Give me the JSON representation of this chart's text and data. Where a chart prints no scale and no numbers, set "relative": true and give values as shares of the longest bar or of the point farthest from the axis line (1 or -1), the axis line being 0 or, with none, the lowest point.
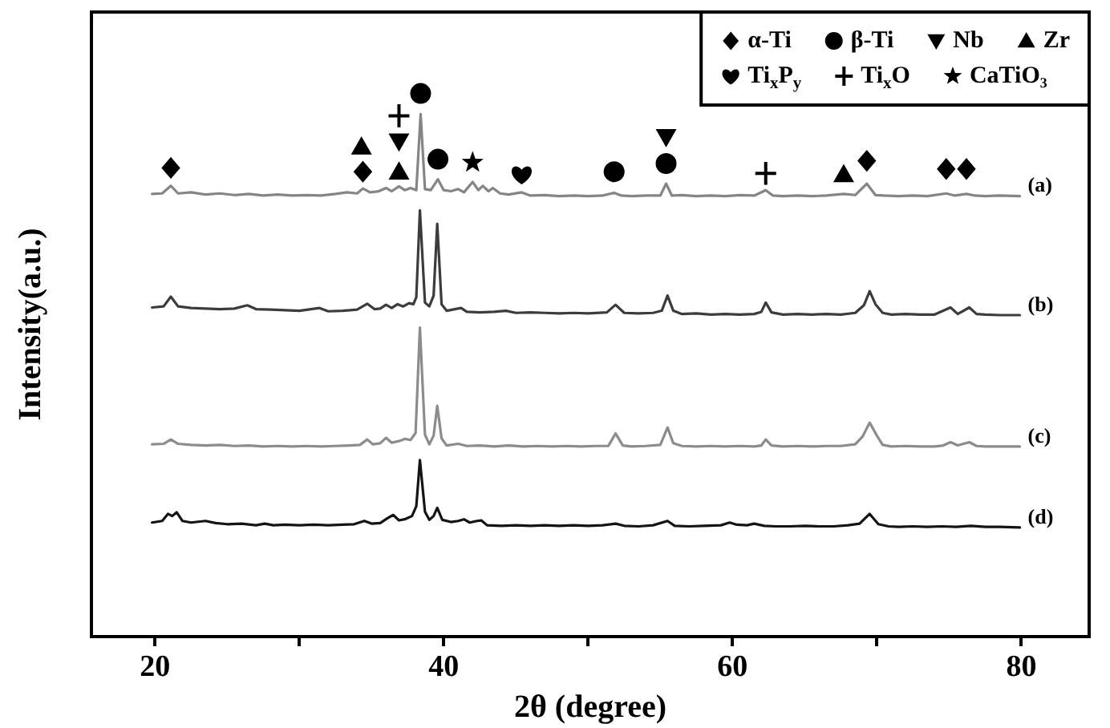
{
  "chart_data": {
    "type": "line",
    "relative": true,
    "xlabel": "2θ (degree)",
    "ylabel": "Intensity(a.u.)",
    "legend": "top right",
    "xlim": [
      15.6,
      84.7
    ],
    "xticks": [
      20,
      {
        "value": 30,
        "label": null
      },
      40,
      {
        "value": 50,
        "label": null
      },
      60,
      {
        "value": 70,
        "label": null
      },
      80
    ],
    "series": [
      {
        "name": "(a)",
        "color": "#858585",
        "x": [
          19.8,
          20.5,
          21.1,
          21.6,
          22.5,
          23.5,
          24.5,
          25.5,
          26.5,
          27.5,
          28.5,
          29.5,
          30.5,
          31.5,
          32.5,
          33.3,
          34.0,
          34.4,
          34.9,
          35.5,
          36.0,
          36.4,
          36.9,
          37.3,
          37.7,
          38.1,
          38.4,
          38.7,
          39.1,
          39.6,
          40.0,
          40.5,
          41.0,
          41.4,
          42.0,
          42.4,
          42.7,
          43.1,
          43.4,
          43.9,
          44.5,
          45.4,
          46.0,
          47.0,
          48.0,
          49.0,
          50.0,
          51.0,
          51.8,
          52.3,
          53.0,
          54.0,
          55.0,
          55.4,
          55.8,
          56.5,
          57.5,
          58.5,
          59.5,
          60.5,
          61.5,
          62.3,
          62.8,
          63.5,
          64.5,
          65.5,
          66.5,
          67.7,
          68.5,
          69.3,
          69.9,
          70.5,
          71.5,
          72.5,
          73.5,
          74.8,
          75.4,
          76.2,
          76.8,
          77.5,
          78.5,
          79.9
        ],
        "values": [
          0.815,
          0.816,
          0.83,
          0.816,
          0.818,
          0.814,
          0.816,
          0.813,
          0.815,
          0.812,
          0.814,
          0.812,
          0.813,
          0.812,
          0.815,
          0.818,
          0.816,
          0.825,
          0.818,
          0.82,
          0.826,
          0.82,
          0.829,
          0.822,
          0.826,
          0.822,
          0.962,
          0.824,
          0.822,
          0.842,
          0.822,
          0.82,
          0.824,
          0.818,
          0.837,
          0.822,
          0.83,
          0.82,
          0.826,
          0.816,
          0.814,
          0.818,
          0.812,
          0.813,
          0.811,
          0.812,
          0.811,
          0.812,
          0.817,
          0.812,
          0.811,
          0.812,
          0.812,
          0.834,
          0.812,
          0.813,
          0.811,
          0.812,
          0.811,
          0.813,
          0.812,
          0.822,
          0.812,
          0.811,
          0.812,
          0.811,
          0.812,
          0.815,
          0.813,
          0.834,
          0.813,
          0.812,
          0.811,
          0.812,
          0.811,
          0.816,
          0.812,
          0.815,
          0.812,
          0.811,
          0.812,
          0.811
        ]
      },
      {
        "name": "(b)",
        "color": "#3c3c3c",
        "x": [
          19.8,
          20.6,
          21.1,
          21.6,
          22.5,
          23.5,
          24.5,
          25.5,
          26.4,
          27.0,
          28.0,
          29.0,
          30.0,
          31.4,
          32.0,
          33.0,
          34.0,
          34.7,
          35.2,
          35.6,
          36.0,
          36.4,
          36.8,
          37.2,
          37.6,
          37.9,
          38.1,
          38.35,
          38.7,
          39.0,
          39.3,
          39.55,
          39.85,
          40.2,
          41.2,
          41.6,
          42.5,
          43.5,
          44.3,
          45.0,
          46.0,
          47.0,
          48.0,
          49.0,
          50.0,
          51.3,
          51.9,
          52.5,
          53.5,
          54.5,
          55.1,
          55.5,
          55.9,
          56.5,
          57.5,
          58.5,
          59.5,
          60.5,
          61.5,
          62.0,
          62.3,
          62.7,
          63.5,
          64.5,
          65.5,
          66.5,
          67.5,
          68.5,
          69.1,
          69.5,
          69.9,
          70.4,
          71.0,
          72.0,
          73.0,
          74.0,
          75.1,
          75.6,
          76.4,
          76.9,
          77.5,
          78.5,
          79.9
        ],
        "values": [
          0.606,
          0.608,
          0.626,
          0.608,
          0.605,
          0.604,
          0.603,
          0.604,
          0.61,
          0.603,
          0.602,
          0.601,
          0.6,
          0.605,
          0.599,
          0.6,
          0.602,
          0.613,
          0.603,
          0.604,
          0.611,
          0.605,
          0.612,
          0.608,
          0.614,
          0.612,
          0.625,
          0.785,
          0.615,
          0.608,
          0.628,
          0.76,
          0.612,
          0.6,
          0.605,
          0.598,
          0.597,
          0.598,
          0.6,
          0.596,
          0.597,
          0.596,
          0.595,
          0.596,
          0.595,
          0.597,
          0.611,
          0.596,
          0.595,
          0.596,
          0.6,
          0.628,
          0.6,
          0.594,
          0.595,
          0.593,
          0.594,
          0.593,
          0.594,
          0.598,
          0.615,
          0.597,
          0.593,
          0.594,
          0.593,
          0.594,
          0.593,
          0.596,
          0.61,
          0.636,
          0.612,
          0.596,
          0.593,
          0.594,
          0.593,
          0.593,
          0.606,
          0.594,
          0.606,
          0.594,
          0.593,
          0.592,
          0.592
        ]
      },
      {
        "name": "(c)",
        "color": "#8c8c8c",
        "x": [
          19.8,
          20.6,
          21.1,
          21.6,
          22.5,
          23.5,
          24.5,
          25.5,
          26.5,
          27.5,
          28.5,
          29.5,
          30.5,
          31.5,
          32.5,
          33.5,
          34.2,
          34.7,
          35.1,
          35.6,
          36.0,
          36.4,
          36.9,
          37.3,
          37.7,
          38.05,
          38.35,
          38.7,
          39.0,
          39.3,
          39.55,
          39.85,
          40.2,
          41.0,
          41.6,
          42.5,
          43.5,
          44.5,
          45.5,
          46.5,
          47.5,
          48.5,
          49.5,
          50.5,
          51.4,
          51.9,
          52.4,
          53.0,
          54.0,
          55.0,
          55.5,
          55.9,
          56.5,
          57.5,
          58.5,
          59.5,
          60.5,
          61.5,
          62.0,
          62.3,
          62.7,
          63.5,
          64.5,
          65.5,
          66.5,
          67.5,
          68.5,
          69.0,
          69.5,
          70.0,
          70.4,
          71.0,
          72.0,
          73.0,
          74.0,
          74.6,
          75.1,
          75.6,
          76.4,
          76.9,
          77.5,
          78.5,
          79.9
        ],
        "values": [
          0.354,
          0.355,
          0.363,
          0.355,
          0.353,
          0.352,
          0.353,
          0.351,
          0.352,
          0.35,
          0.351,
          0.35,
          0.351,
          0.35,
          0.351,
          0.352,
          0.353,
          0.363,
          0.354,
          0.356,
          0.366,
          0.357,
          0.36,
          0.364,
          0.362,
          0.375,
          0.569,
          0.372,
          0.354,
          0.37,
          0.425,
          0.365,
          0.352,
          0.355,
          0.351,
          0.352,
          0.35,
          0.352,
          0.35,
          0.351,
          0.35,
          0.351,
          0.35,
          0.351,
          0.351,
          0.374,
          0.352,
          0.35,
          0.351,
          0.353,
          0.385,
          0.356,
          0.351,
          0.35,
          0.351,
          0.35,
          0.351,
          0.35,
          0.352,
          0.363,
          0.352,
          0.35,
          0.351,
          0.35,
          0.351,
          0.351,
          0.354,
          0.368,
          0.394,
          0.37,
          0.353,
          0.35,
          0.351,
          0.35,
          0.35,
          0.352,
          0.358,
          0.352,
          0.358,
          0.351,
          0.35,
          0.35,
          0.35
        ]
      },
      {
        "name": "(d)",
        "color": "#141414",
        "x": [
          19.8,
          20.5,
          20.9,
          21.2,
          21.5,
          21.9,
          22.5,
          23.5,
          24.2,
          25.0,
          26.0,
          27.0,
          27.6,
          28.2,
          29.0,
          30.0,
          31.0,
          32.0,
          33.0,
          33.8,
          34.5,
          35.0,
          35.6,
          36.1,
          36.5,
          36.9,
          37.3,
          37.8,
          38.1,
          38.35,
          38.7,
          39.0,
          39.3,
          39.55,
          39.9,
          40.5,
          41.0,
          41.4,
          41.8,
          42.3,
          42.6,
          43.0,
          44.0,
          45.0,
          46.0,
          47.0,
          48.0,
          49.0,
          50.0,
          51.0,
          51.9,
          52.5,
          53.5,
          54.5,
          55.5,
          56.0,
          57.0,
          58.0,
          59.2,
          59.8,
          60.3,
          61.0,
          61.5,
          62.2,
          63.0,
          64.0,
          65.0,
          66.0,
          67.0,
          68.0,
          68.8,
          69.5,
          70.1,
          70.8,
          71.5,
          72.5,
          73.5,
          74.5,
          75.5,
          76.5,
          77.5,
          78.5,
          79.9
        ],
        "values": [
          0.21,
          0.213,
          0.226,
          0.222,
          0.229,
          0.213,
          0.21,
          0.213,
          0.209,
          0.207,
          0.208,
          0.205,
          0.208,
          0.205,
          0.206,
          0.205,
          0.206,
          0.205,
          0.206,
          0.207,
          0.213,
          0.208,
          0.209,
          0.218,
          0.224,
          0.214,
          0.216,
          0.222,
          0.24,
          0.325,
          0.23,
          0.215,
          0.222,
          0.237,
          0.215,
          0.211,
          0.213,
          0.216,
          0.21,
          0.213,
          0.214,
          0.205,
          0.204,
          0.205,
          0.204,
          0.205,
          0.204,
          0.205,
          0.204,
          0.205,
          0.208,
          0.204,
          0.203,
          0.205,
          0.213,
          0.204,
          0.203,
          0.204,
          0.205,
          0.21,
          0.206,
          0.205,
          0.208,
          0.204,
          0.203,
          0.203,
          0.204,
          0.203,
          0.203,
          0.205,
          0.208,
          0.226,
          0.207,
          0.203,
          0.202,
          0.203,
          0.202,
          0.203,
          0.202,
          0.204,
          0.202,
          0.202,
          0.201
        ]
      },
      {
        "name": "α-Ti",
        "type": "scatter",
        "marker": "diamond",
        "color": "#000000",
        "x": [
          21.1,
          34.4,
          69.3,
          74.8,
          76.2
        ],
        "values": [
          0.863,
          0.856,
          0.876,
          0.861,
          0.861
        ]
      },
      {
        "name": "β-Ti",
        "type": "scatter",
        "marker": "circle",
        "color": "#000000",
        "x": [
          38.4,
          39.6,
          51.8,
          55.4
        ],
        "values": [
          1.0,
          0.879,
          0.856,
          0.871
        ]
      },
      {
        "name": "Nb",
        "type": "scatter",
        "marker": "triangle-down",
        "color": "#000000",
        "x": [
          36.9,
          55.4
        ],
        "values": [
          0.912,
          0.92
        ]
      },
      {
        "name": "Zr",
        "type": "scatter",
        "marker": "triangle",
        "color": "#000000",
        "x": [
          34.3,
          36.9,
          67.7
        ],
        "values": [
          0.902,
          0.856,
          0.851
        ]
      },
      {
        "name": "Ti$_{x}$P$_{y}$",
        "type": "scatter",
        "color": "#000000",
        "x": [
          45.4
        ],
        "values": [
          0.851
        ]
      },
      {
        "name": "Ti$_{x}$O",
        "type": "scatter",
        "marker": "cross",
        "color": "#000000",
        "x": [
          36.9,
          62.3
        ],
        "values": [
          0.959,
          0.853
        ]
      },
      {
        "name": "CaTiO₃",
        "type": "scatter",
        "marker": "star",
        "color": "#000000",
        "x": [
          42.0
        ],
        "values": [
          0.873
        ]
      }
    ]
  }
}
